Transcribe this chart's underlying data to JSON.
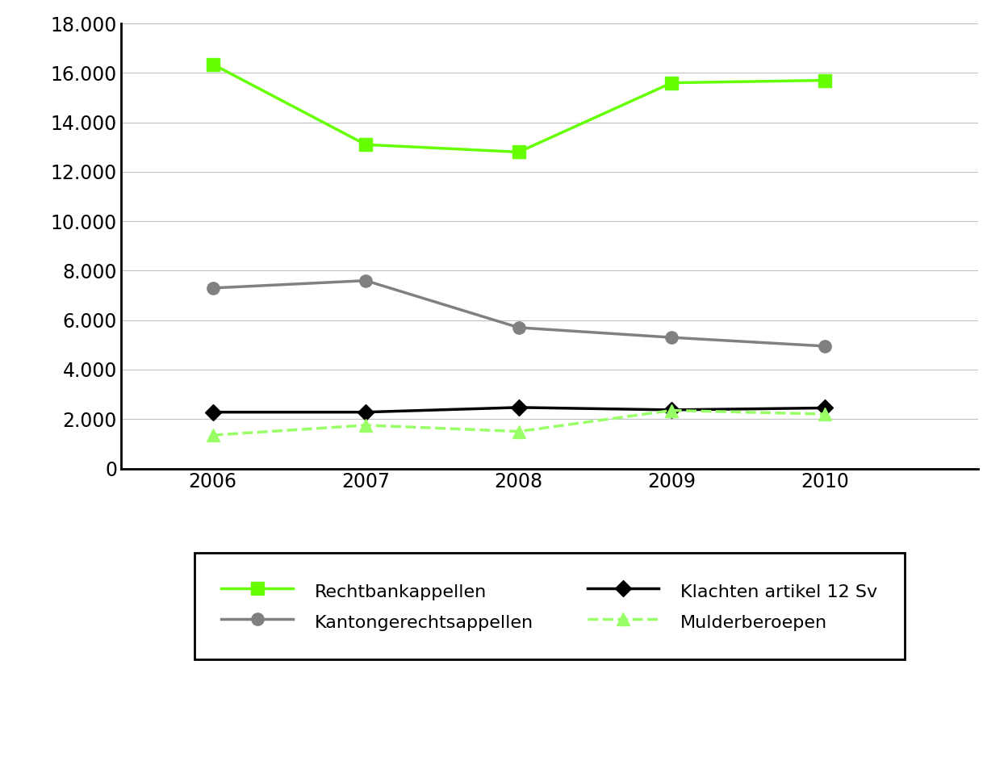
{
  "years": [
    2006,
    2007,
    2008,
    2009,
    2010
  ],
  "rechtbankappellen": [
    16350,
    13100,
    12800,
    15600,
    15700
  ],
  "kantongerechtsappellen": [
    7300,
    7600,
    5700,
    5300,
    4950
  ],
  "klachten_artikel_12": [
    2280,
    2280,
    2470,
    2370,
    2450
  ],
  "mulderberoepen": [
    1350,
    1750,
    1500,
    2350,
    2200
  ],
  "rechtbankappellen_color": "#66FF00",
  "kantongerechtsappellen_color": "#808080",
  "klachten_color": "#000000",
  "mulderberoepen_color": "#99FF66",
  "ylim": [
    0,
    18000
  ],
  "yticks": [
    0,
    2000,
    4000,
    6000,
    8000,
    10000,
    12000,
    14000,
    16000,
    18000
  ],
  "ytick_labels": [
    "0",
    "2.000",
    "4.000",
    "6.000",
    "8.000",
    "10.000",
    "12.000",
    "14.000",
    "16.000",
    "18.000"
  ],
  "legend_labels_col1": [
    "Rechtbankappellen",
    "Klachten artikel 12 Sv"
  ],
  "legend_labels_col2": [
    "Kantongerechtsappellen",
    "Mulderberoepen"
  ],
  "background_color": "#ffffff",
  "xlim_left": 2005.4,
  "xlim_right": 2011.0
}
